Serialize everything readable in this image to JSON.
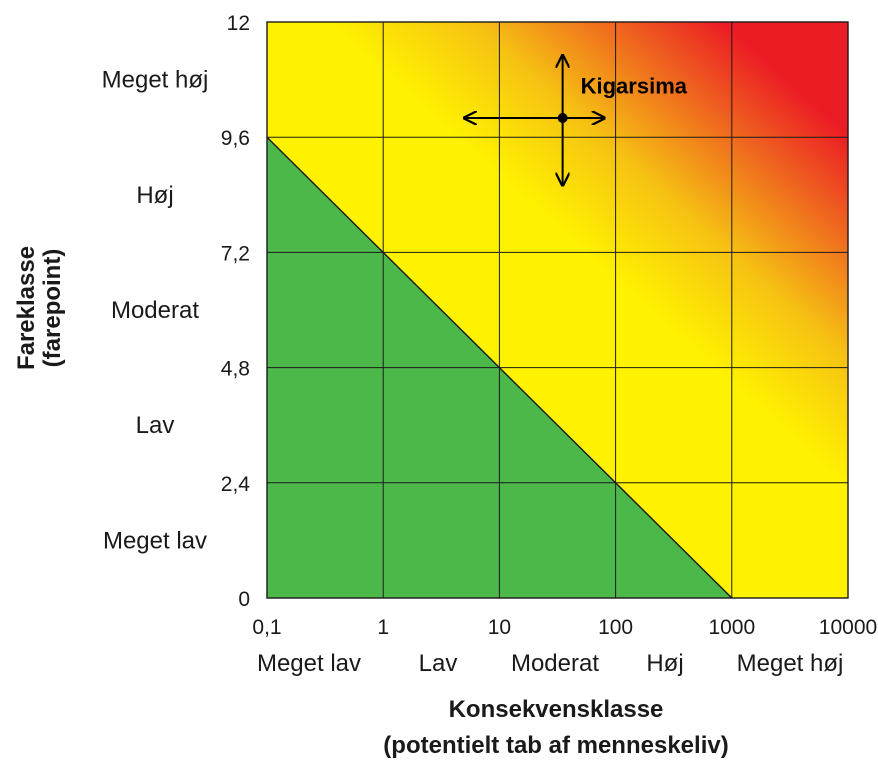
{
  "chart_data": {
    "type": "heatmap",
    "title": "",
    "xlabel": "Konsekvensklasse",
    "xlabel_sub": "(potentielt tab af menneskeliv)",
    "ylabel": "Fareklasse",
    "ylabel_sub": "(farepoint)",
    "x_scale": "log",
    "xlim": [
      0.1,
      10000
    ],
    "ylim": [
      0,
      12
    ],
    "x_ticks": [
      {
        "value": 0.1,
        "label": "0,1"
      },
      {
        "value": 1,
        "label": "1"
      },
      {
        "value": 10,
        "label": "10"
      },
      {
        "value": 100,
        "label": "100"
      },
      {
        "value": 1000,
        "label": "1000"
      },
      {
        "value": 10000,
        "label": "10000"
      }
    ],
    "y_ticks": [
      {
        "value": 0,
        "label": "0"
      },
      {
        "value": 2.4,
        "label": "2,4"
      },
      {
        "value": 4.8,
        "label": "4,8"
      },
      {
        "value": 7.2,
        "label": "7,2"
      },
      {
        "value": 9.6,
        "label": "9,6"
      },
      {
        "value": 12,
        "label": "12"
      }
    ],
    "x_categories": [
      {
        "label": "Meget lav",
        "range": [
          0.1,
          1
        ]
      },
      {
        "label": "Lav",
        "range": [
          1,
          10
        ]
      },
      {
        "label": "Moderat",
        "range": [
          10,
          100
        ]
      },
      {
        "label": "Høj",
        "range": [
          100,
          1000
        ]
      },
      {
        "label": "Meget høj",
        "range": [
          1000,
          10000
        ]
      }
    ],
    "y_categories": [
      {
        "label": "Meget lav",
        "range": [
          0,
          2.4
        ]
      },
      {
        "label": "Lav",
        "range": [
          2.4,
          4.8
        ]
      },
      {
        "label": "Moderat",
        "range": [
          4.8,
          7.2
        ]
      },
      {
        "label": "Høj",
        "range": [
          7.2,
          9.6
        ]
      },
      {
        "label": "Meget høj",
        "range": [
          9.6,
          12
        ]
      }
    ],
    "zones": [
      {
        "name": "low",
        "color": "#4db84a",
        "boundary": "line from (0.1, 9.6) to (1000, 0)"
      },
      {
        "name": "medium",
        "color": "#fff200"
      },
      {
        "name": "high",
        "color": "#ec1c24",
        "boundary": "gradient from yellow to red above line (1, 12) to (10000, 2.4)"
      }
    ],
    "points": [
      {
        "label": "Kigarsima",
        "x": 35,
        "y": 10.0,
        "x_range": [
          5,
          80
        ],
        "y_range": [
          8.6,
          11.3
        ]
      }
    ],
    "grid": true,
    "legend": "none"
  }
}
